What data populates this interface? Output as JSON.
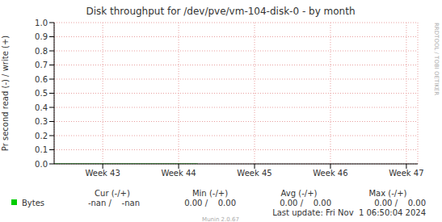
{
  "chart_data": {
    "type": "line",
    "title": "Disk throughput for /dev/pve/vm-104-disk-0 - by month",
    "y_label": "Pr second read (-) / write (+)",
    "x": [
      42.36,
      44.25
    ],
    "series": [
      {
        "name": "Bytes",
        "color": "#00cc00",
        "values": [
          0,
          0
        ]
      }
    ],
    "xlim": [
      42.36,
      47.15
    ],
    "xticks": [
      {
        "value": 43,
        "label": "Week 43"
      },
      {
        "value": 44,
        "label": "Week 44"
      },
      {
        "value": 45,
        "label": "Week 45"
      },
      {
        "value": 46,
        "label": "Week 46"
      },
      {
        "value": 47,
        "label": "Week 47"
      }
    ],
    "ylim": [
      0,
      1
    ],
    "yticks": [
      {
        "value": 0,
        "label": "0.0"
      },
      0.1,
      0.2,
      0.3,
      0.4,
      0.5,
      0.6,
      0.7,
      0.8,
      0.9,
      {
        "value": 1,
        "label": "1.0"
      }
    ],
    "grid": true,
    "side_text": "RRDTOOL / TOBI OETIKER",
    "legend_table": {
      "headers": [
        "Cur (-/+)",
        "Min (-/+)",
        "Avg (-/+)",
        "Max (-/+)"
      ],
      "rows": [
        {
          "name": "Bytes",
          "cells": [
            "-nan /    -nan",
            "0.00 /    0.00",
            "0.00 /    0.00",
            "0.00 /    0.00"
          ]
        }
      ]
    },
    "footer": [
      "Last update: Fri Nov  1 06:50:04 2024",
      "Munin 2.0.67"
    ]
  }
}
